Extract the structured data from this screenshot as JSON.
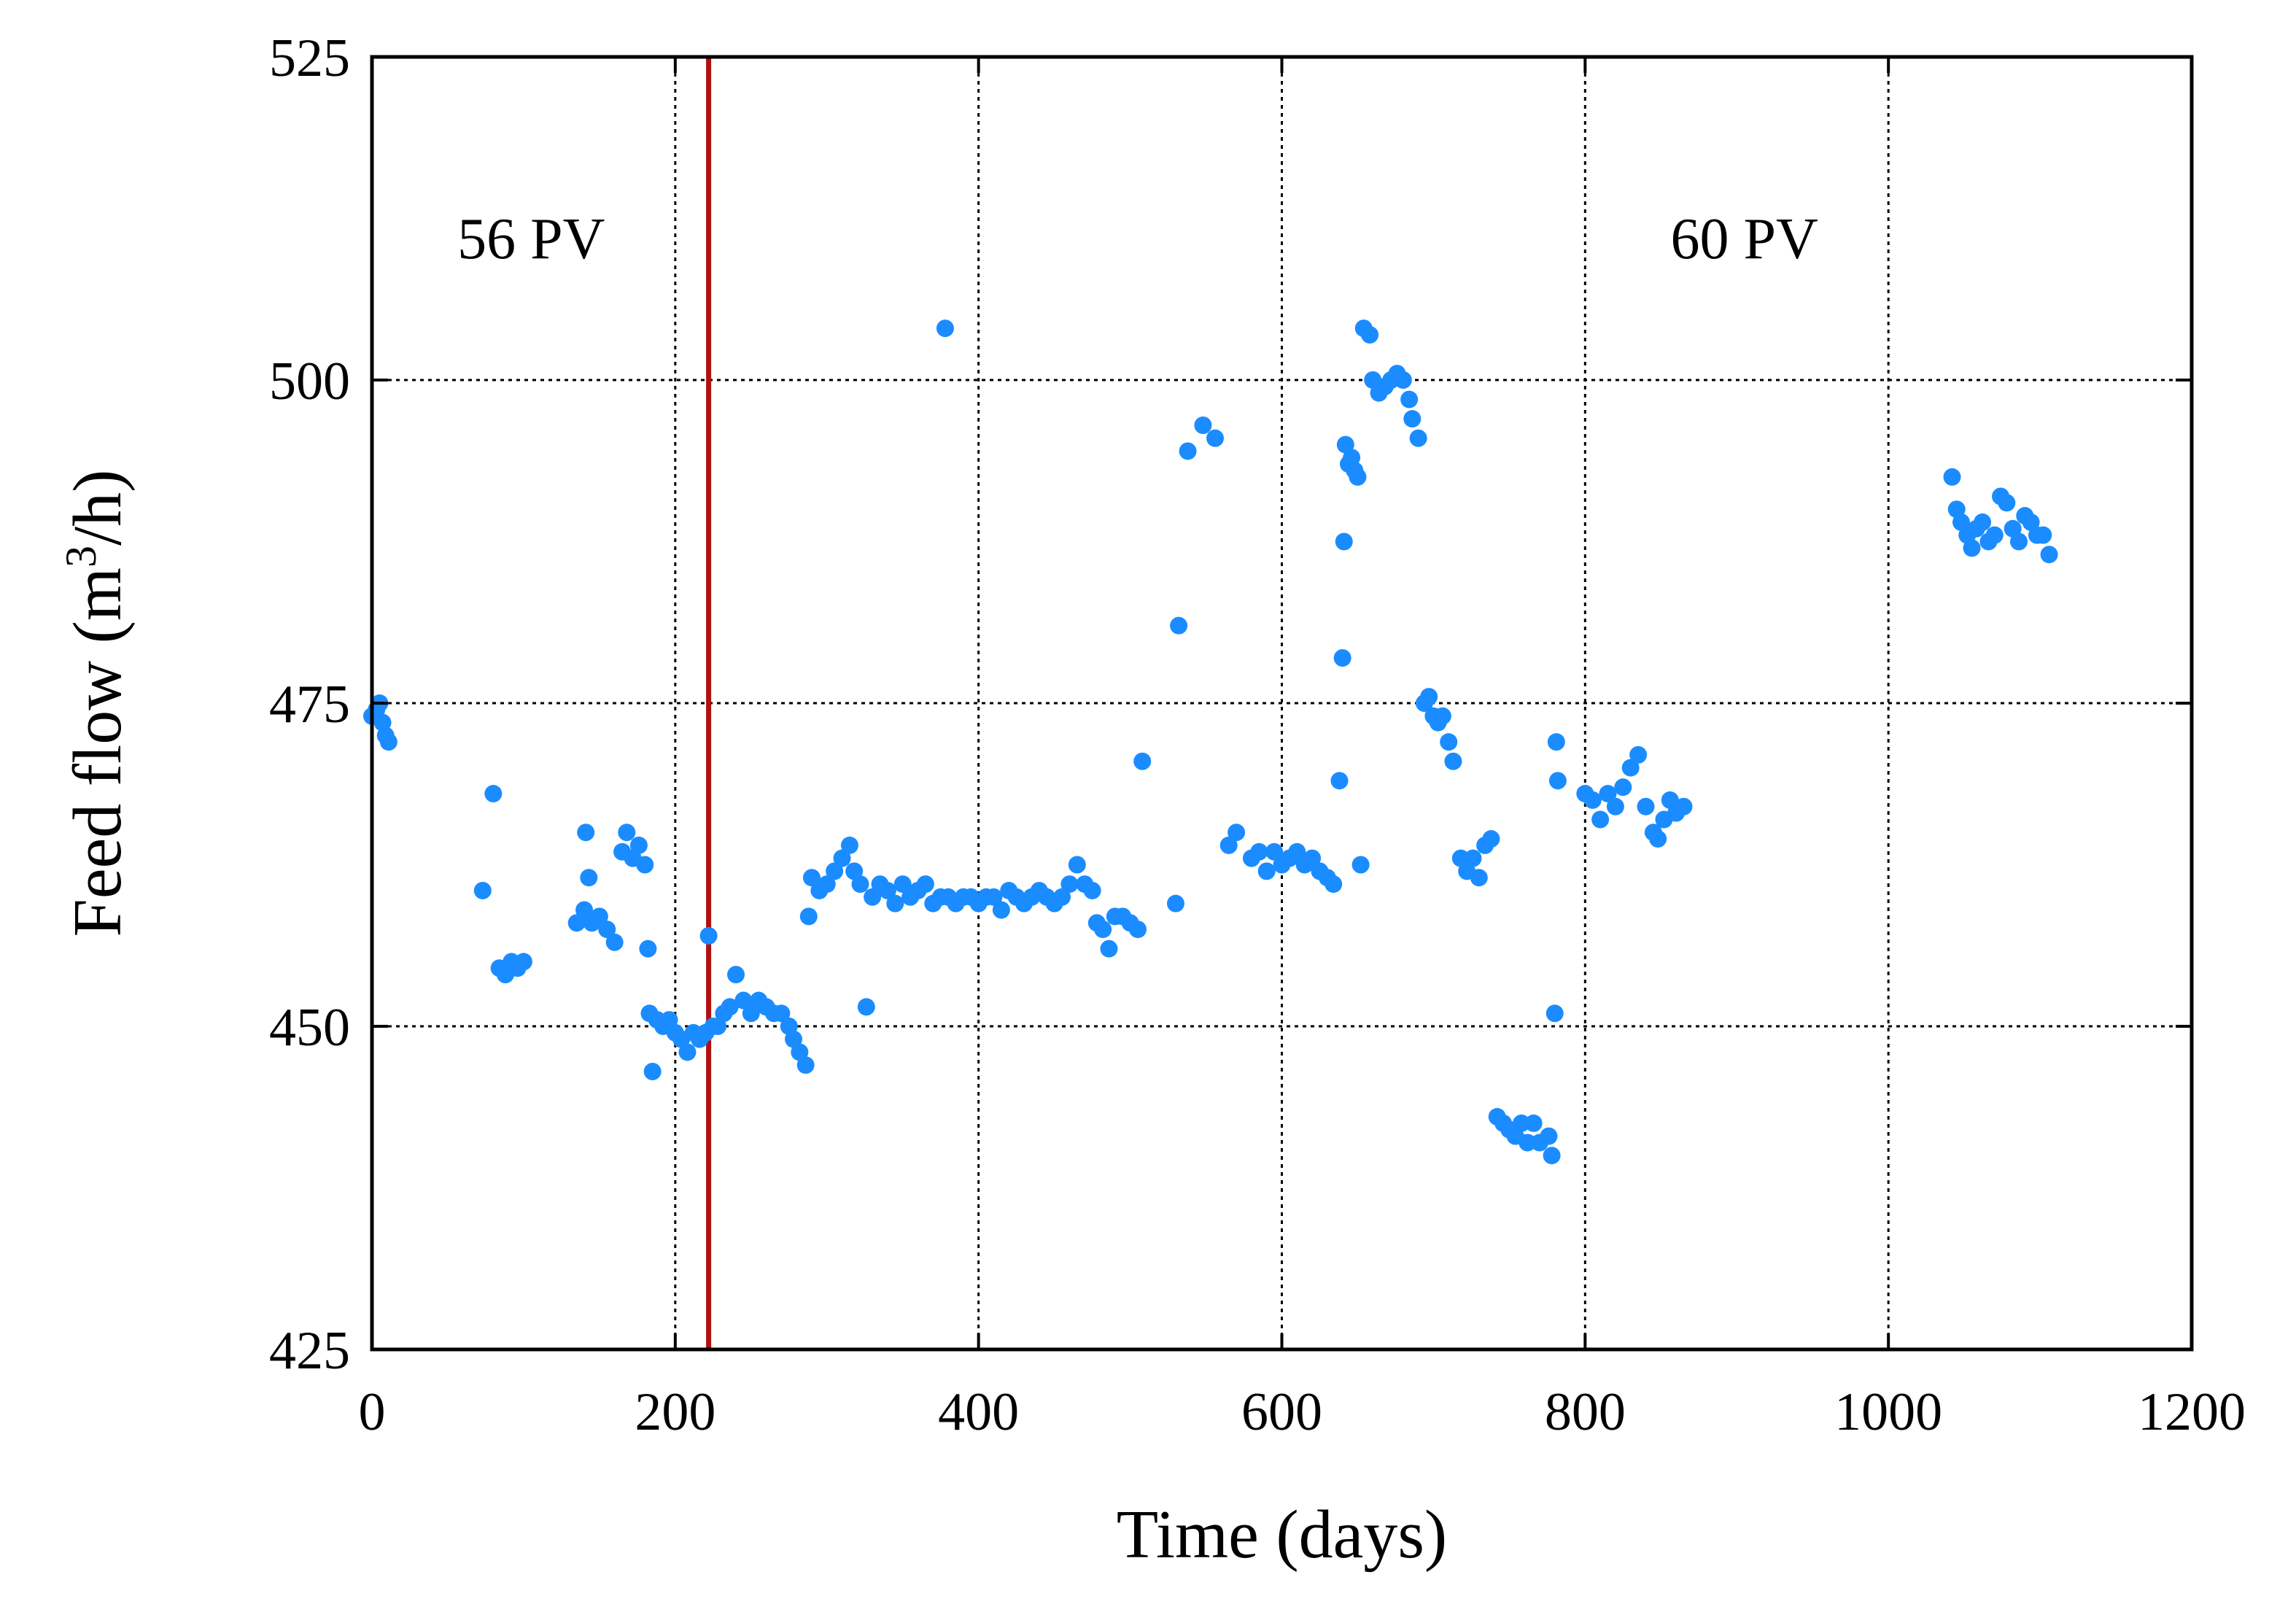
{
  "chart_data": {
    "type": "scatter",
    "title": "",
    "xlabel": "Time (days)",
    "ylabel_prefix": "Feed flow (m",
    "ylabel_sup": "3",
    "ylabel_suffix": "/h)",
    "xlim": [
      0,
      1200
    ],
    "ylim": [
      425,
      525
    ],
    "xticks": [
      0,
      200,
      400,
      600,
      800,
      1000,
      1200
    ],
    "yticks": [
      425,
      450,
      475,
      500,
      525
    ],
    "grid": true,
    "marker_color": "#1a8cff",
    "vline": {
      "x": 222,
      "color": "#b01010"
    },
    "annotations": [
      {
        "text": "56 PV",
        "x": 105,
        "y": 511
      },
      {
        "text": "60 PV",
        "x": 905,
        "y": 511
      }
    ],
    "series": [
      {
        "name": "Feed flow",
        "points": [
          [
            0,
            474
          ],
          [
            3,
            474.5
          ],
          [
            5,
            475
          ],
          [
            7,
            473.5
          ],
          [
            9,
            472.5
          ],
          [
            11,
            472
          ],
          [
            73,
            460.5
          ],
          [
            80,
            468
          ],
          [
            84,
            454.5
          ],
          [
            88,
            454
          ],
          [
            92,
            455
          ],
          [
            96,
            454.5
          ],
          [
            100,
            455
          ],
          [
            135,
            458
          ],
          [
            140,
            459
          ],
          [
            141,
            465
          ],
          [
            143,
            461.5
          ],
          [
            145,
            458
          ],
          [
            150,
            458.5
          ],
          [
            155,
            457.5
          ],
          [
            160,
            456.5
          ],
          [
            165,
            463.5
          ],
          [
            168,
            465
          ],
          [
            172,
            463
          ],
          [
            176,
            464
          ],
          [
            180,
            462.5
          ],
          [
            182,
            456
          ],
          [
            183,
            451
          ],
          [
            185,
            446.5
          ],
          [
            188,
            450.5
          ],
          [
            192,
            450
          ],
          [
            196,
            450.5
          ],
          [
            200,
            449.5
          ],
          [
            204,
            449
          ],
          [
            208,
            448
          ],
          [
            212,
            449.5
          ],
          [
            216,
            449
          ],
          [
            220,
            449.5
          ],
          [
            225,
            450
          ],
          [
            222,
            457
          ],
          [
            228,
            450
          ],
          [
            232,
            451
          ],
          [
            236,
            451.5
          ],
          [
            240,
            454
          ],
          [
            245,
            452
          ],
          [
            250,
            451
          ],
          [
            255,
            452
          ],
          [
            260,
            451.5
          ],
          [
            265,
            451
          ],
          [
            270,
            451
          ],
          [
            275,
            450
          ],
          [
            278,
            449
          ],
          [
            282,
            448
          ],
          [
            286,
            447
          ],
          [
            288,
            458.5
          ],
          [
            290,
            461.5
          ],
          [
            295,
            460.5
          ],
          [
            300,
            461
          ],
          [
            305,
            462
          ],
          [
            310,
            463
          ],
          [
            315,
            464
          ],
          [
            318,
            462
          ],
          [
            322,
            461
          ],
          [
            326,
            451.5
          ],
          [
            330,
            460
          ],
          [
            335,
            461
          ],
          [
            340,
            460.5
          ],
          [
            345,
            459.5
          ],
          [
            350,
            461
          ],
          [
            355,
            460
          ],
          [
            360,
            460.5
          ],
          [
            365,
            461
          ],
          [
            370,
            459.5
          ],
          [
            375,
            460
          ],
          [
            378,
            504
          ],
          [
            380,
            460
          ],
          [
            385,
            459.5
          ],
          [
            390,
            460
          ],
          [
            395,
            460
          ],
          [
            400,
            459.5
          ],
          [
            405,
            460
          ],
          [
            410,
            460
          ],
          [
            415,
            459
          ],
          [
            420,
            460.5
          ],
          [
            425,
            460
          ],
          [
            430,
            459.5
          ],
          [
            435,
            460
          ],
          [
            440,
            460.5
          ],
          [
            445,
            460
          ],
          [
            450,
            459.5
          ],
          [
            455,
            460
          ],
          [
            460,
            461
          ],
          [
            465,
            462.5
          ],
          [
            470,
            461
          ],
          [
            475,
            460.5
          ],
          [
            478,
            458
          ],
          [
            482,
            457.5
          ],
          [
            486,
            456
          ],
          [
            490,
            458.5
          ],
          [
            495,
            458.5
          ],
          [
            500,
            458
          ],
          [
            505,
            457.5
          ],
          [
            508,
            470.5
          ],
          [
            530,
            459.5
          ],
          [
            532,
            481
          ],
          [
            538,
            494.5
          ],
          [
            548,
            496.5
          ],
          [
            556,
            495.5
          ],
          [
            565,
            464
          ],
          [
            570,
            465
          ],
          [
            580,
            463
          ],
          [
            585,
            463.5
          ],
          [
            590,
            462
          ],
          [
            595,
            463.5
          ],
          [
            600,
            462.5
          ],
          [
            605,
            463
          ],
          [
            610,
            463.5
          ],
          [
            615,
            462.5
          ],
          [
            620,
            463
          ],
          [
            625,
            462
          ],
          [
            630,
            461.5
          ],
          [
            634,
            461
          ],
          [
            638,
            469
          ],
          [
            640,
            478.5
          ],
          [
            641,
            487.5
          ],
          [
            642,
            495
          ],
          [
            644,
            493.5
          ],
          [
            646,
            494
          ],
          [
            648,
            493
          ],
          [
            650,
            492.5
          ],
          [
            652,
            462.5
          ],
          [
            654,
            504
          ],
          [
            658,
            503.5
          ],
          [
            660,
            500
          ],
          [
            664,
            499
          ],
          [
            668,
            499.5
          ],
          [
            672,
            500
          ],
          [
            676,
            500.5
          ],
          [
            680,
            500
          ],
          [
            684,
            498.5
          ],
          [
            686,
            497
          ],
          [
            690,
            495.5
          ],
          [
            694,
            475
          ],
          [
            697,
            475.5
          ],
          [
            700,
            474
          ],
          [
            703,
            473.5
          ],
          [
            706,
            474
          ],
          [
            710,
            472
          ],
          [
            713,
            470.5
          ],
          [
            718,
            463
          ],
          [
            722,
            462
          ],
          [
            726,
            463
          ],
          [
            730,
            461.5
          ],
          [
            734,
            464
          ],
          [
            738,
            464.5
          ],
          [
            742,
            443
          ],
          [
            746,
            442.5
          ],
          [
            750,
            442
          ],
          [
            754,
            441.5
          ],
          [
            758,
            442.5
          ],
          [
            762,
            441
          ],
          [
            766,
            442.5
          ],
          [
            770,
            441
          ],
          [
            776,
            441.5
          ],
          [
            778,
            440
          ],
          [
            780,
            451
          ],
          [
            781,
            472
          ],
          [
            782,
            469
          ],
          [
            800,
            468
          ],
          [
            805,
            467.5
          ],
          [
            810,
            466
          ],
          [
            815,
            468
          ],
          [
            820,
            467
          ],
          [
            825,
            468.5
          ],
          [
            830,
            470
          ],
          [
            835,
            471
          ],
          [
            840,
            467
          ],
          [
            845,
            465
          ],
          [
            848,
            464.5
          ],
          [
            852,
            466
          ],
          [
            856,
            467.5
          ],
          [
            860,
            466.5
          ],
          [
            865,
            467
          ],
          [
            1042,
            492.5
          ],
          [
            1045,
            490
          ],
          [
            1048,
            489
          ],
          [
            1052,
            488
          ],
          [
            1055,
            487
          ],
          [
            1058,
            488.5
          ],
          [
            1062,
            489
          ],
          [
            1066,
            487.5
          ],
          [
            1070,
            488
          ],
          [
            1074,
            491
          ],
          [
            1078,
            490.5
          ],
          [
            1082,
            488.5
          ],
          [
            1086,
            487.5
          ],
          [
            1090,
            489.5
          ],
          [
            1094,
            489
          ],
          [
            1098,
            488
          ],
          [
            1102,
            488
          ],
          [
            1106,
            486.5
          ]
        ]
      }
    ]
  }
}
